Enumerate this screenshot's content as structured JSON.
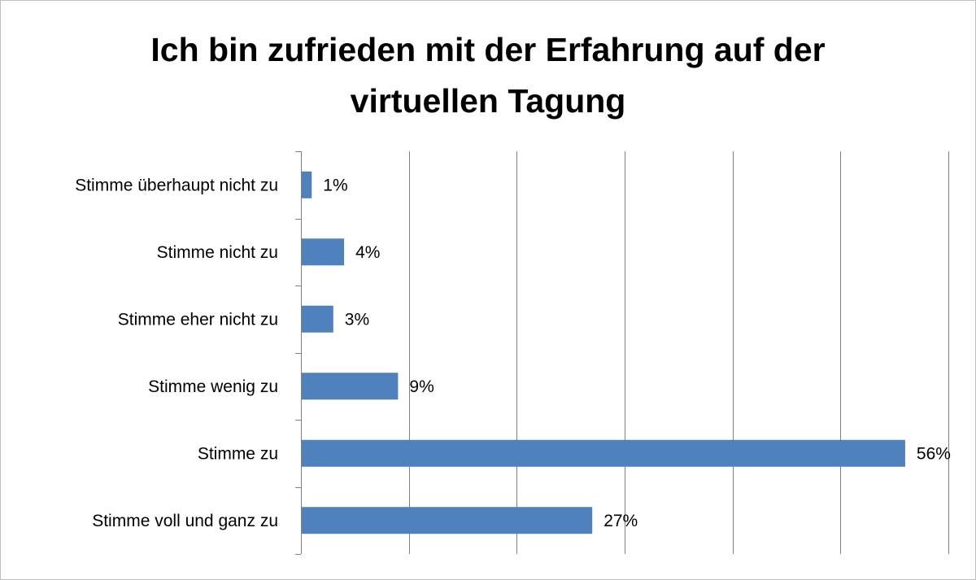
{
  "chart_data": {
    "type": "bar",
    "orientation": "horizontal",
    "title": "Ich bin zufrieden mit der Erfahrung auf der virtuellen Tagung",
    "title_lines": [
      "Ich bin zufrieden mit der Erfahrung auf der",
      "virtuellen Tagung"
    ],
    "categories": [
      "Stimme überhaupt nicht zu",
      "Stimme nicht zu",
      "Stimme eher nicht zu",
      "Stimme wenig zu",
      "Stimme zu",
      "Stimme voll und ganz zu"
    ],
    "values": [
      1,
      4,
      3,
      9,
      56,
      27
    ],
    "data_labels": [
      "1%",
      "4%",
      "3%",
      "9%",
      "56%",
      "27%"
    ],
    "xlim": [
      0,
      60
    ],
    "x_gridline_step": 10,
    "grid": "vertical-gridlines",
    "legend": "none",
    "bar_color": "#4f81bd",
    "gridline_color": "#7f7f7f"
  }
}
